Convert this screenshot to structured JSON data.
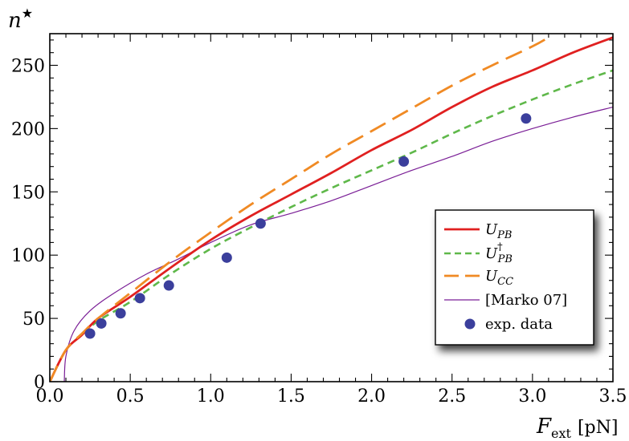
{
  "chart_data": {
    "type": "line",
    "xlim": [
      0,
      3.5
    ],
    "ylim": [
      0,
      275
    ],
    "x_ticks": [
      {
        "value": 0,
        "label": "0.0"
      },
      {
        "value": 0.5,
        "label": "0.5"
      },
      {
        "value": 1.0,
        "label": "1.0"
      },
      {
        "value": 1.5,
        "label": "1.5"
      },
      {
        "value": 2.0,
        "label": "2.0"
      },
      {
        "value": 2.5,
        "label": "2.5"
      },
      {
        "value": 3.0,
        "label": "3.0"
      },
      {
        "value": 3.5,
        "label": "3.5"
      }
    ],
    "y_ticks": [
      {
        "value": 0,
        "label": "0"
      },
      {
        "value": 50,
        "label": "50"
      },
      {
        "value": 100,
        "label": "100"
      },
      {
        "value": 150,
        "label": "150"
      },
      {
        "value": 200,
        "label": "200"
      },
      {
        "value": 250,
        "label": "250"
      }
    ],
    "ylabel": {
      "base": "n",
      "sup": "★"
    },
    "xlabel": {
      "base": "F",
      "sub": "ext",
      "unit": "[pN]"
    },
    "grid": false,
    "legend_position": "lower-right",
    "series": [
      {
        "name": "U_PB",
        "legend": {
          "base": "U",
          "sub": "PB",
          "sup": ""
        },
        "color": "#e02020",
        "style": "solid",
        "points": [
          [
            0.0,
            0
          ],
          [
            0.1,
            25
          ],
          [
            0.2,
            37
          ],
          [
            0.3,
            50
          ],
          [
            0.5,
            67
          ],
          [
            0.75,
            90
          ],
          [
            1.0,
            112
          ],
          [
            1.25,
            131
          ],
          [
            1.5,
            148
          ],
          [
            1.75,
            165
          ],
          [
            2.0,
            183
          ],
          [
            2.25,
            199
          ],
          [
            2.5,
            217
          ],
          [
            2.75,
            233
          ],
          [
            3.0,
            246
          ],
          [
            3.25,
            260
          ],
          [
            3.5,
            272
          ]
        ]
      },
      {
        "name": "U_PB†",
        "legend": {
          "base": "U",
          "sub": "PB",
          "sup": "†"
        },
        "color": "#5fb84a",
        "style": "dashed",
        "points": [
          [
            0.0,
            0
          ],
          [
            0.1,
            25
          ],
          [
            0.2,
            37
          ],
          [
            0.3,
            48
          ],
          [
            0.5,
            63
          ],
          [
            0.75,
            85
          ],
          [
            1.0,
            105
          ],
          [
            1.25,
            122
          ],
          [
            1.5,
            138
          ],
          [
            1.75,
            153
          ],
          [
            2.0,
            167
          ],
          [
            2.25,
            181
          ],
          [
            2.5,
            196
          ],
          [
            2.75,
            210
          ],
          [
            3.0,
            223
          ],
          [
            3.25,
            235
          ],
          [
            3.5,
            246
          ]
        ]
      },
      {
        "name": "U_CC",
        "legend": {
          "base": "U",
          "sub": "CC",
          "sup": ""
        },
        "color": "#f08a24",
        "style": "long-dashed",
        "points": [
          [
            0.0,
            0
          ],
          [
            0.1,
            25
          ],
          [
            0.2,
            38
          ],
          [
            0.3,
            50
          ],
          [
            0.5,
            70
          ],
          [
            0.75,
            95
          ],
          [
            1.0,
            118
          ],
          [
            1.25,
            140
          ],
          [
            1.5,
            160
          ],
          [
            1.75,
            180
          ],
          [
            2.0,
            198
          ],
          [
            2.25,
            216
          ],
          [
            2.5,
            234
          ],
          [
            2.75,
            250
          ],
          [
            3.0,
            265
          ],
          [
            3.1,
            272
          ]
        ]
      },
      {
        "name": "[Marko 07]",
        "legend": {
          "base": "[Marko 07]",
          "sub": "",
          "sup": ""
        },
        "color": "#7a1e96",
        "style": "thin",
        "points": [
          [
            0.09,
            0
          ],
          [
            0.1,
            20
          ],
          [
            0.15,
            40
          ],
          [
            0.25,
            56
          ],
          [
            0.4,
            70
          ],
          [
            0.6,
            85
          ],
          [
            0.8,
            97
          ],
          [
            1.0,
            110
          ],
          [
            1.25,
            124
          ],
          [
            1.5,
            133
          ],
          [
            1.75,
            143
          ],
          [
            2.0,
            155
          ],
          [
            2.25,
            167
          ],
          [
            2.5,
            178
          ],
          [
            2.75,
            190
          ],
          [
            3.0,
            200
          ],
          [
            3.25,
            209
          ],
          [
            3.5,
            217
          ]
        ]
      }
    ],
    "scatter": {
      "name": "exp. data",
      "legend": "exp. data",
      "color": "#3b3f9c",
      "points": [
        [
          0.25,
          38
        ],
        [
          0.32,
          46
        ],
        [
          0.44,
          54
        ],
        [
          0.56,
          66
        ],
        [
          0.74,
          76
        ],
        [
          1.1,
          98
        ],
        [
          1.31,
          125
        ],
        [
          2.2,
          174
        ],
        [
          2.96,
          208
        ]
      ]
    }
  }
}
